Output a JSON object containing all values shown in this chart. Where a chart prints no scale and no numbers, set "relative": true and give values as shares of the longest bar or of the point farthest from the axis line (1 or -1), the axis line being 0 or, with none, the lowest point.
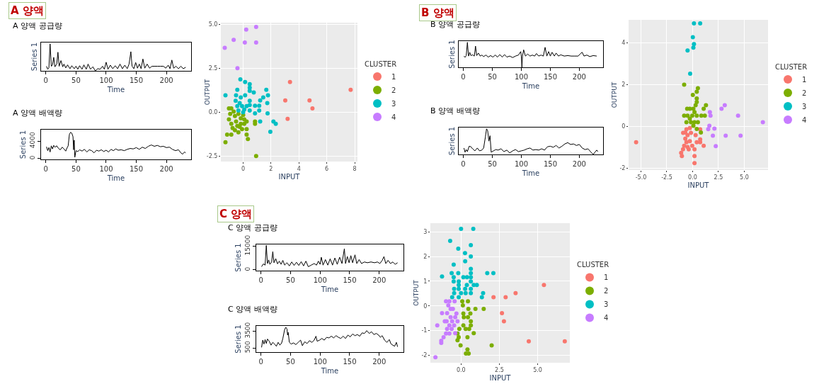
{
  "chart_data": [
    {
      "type": "line",
      "title": "A 양액 공급량",
      "annotations": [
        "A 양액"
      ],
      "xlabel": "Time",
      "ylabel": "Series 1",
      "relative": true,
      "color": "#000000",
      "xlim": [
        -8,
        241
      ],
      "xticks": [
        0,
        50,
        100,
        150,
        200
      ],
      "x": [
        1,
        3,
        5,
        7,
        9,
        11,
        13,
        15,
        18,
        20,
        22,
        25,
        28,
        30,
        33,
        36,
        40,
        43,
        47,
        50,
        53,
        56,
        60,
        63,
        67,
        70,
        74,
        78,
        82,
        86,
        90,
        94,
        97,
        100,
        103,
        107,
        111,
        115,
        119,
        123,
        127,
        131,
        135,
        138,
        141,
        143,
        146,
        149,
        152,
        155,
        158,
        161,
        164,
        168,
        172,
        176,
        180,
        185,
        190,
        195,
        199,
        203,
        206,
        209,
        212,
        216,
        220,
        224,
        228,
        232
      ],
      "values": [
        0.17,
        0.06,
        0.11,
        1.0,
        0.17,
        0.22,
        0.5,
        0.15,
        0.25,
        0.69,
        0.17,
        0.38,
        0.15,
        0.25,
        0.11,
        0.22,
        0.08,
        0.19,
        0.08,
        0.17,
        0.06,
        0.19,
        0.06,
        0.22,
        0.06,
        0.25,
        0.06,
        0.15,
        0,
        0.08,
        0.06,
        0.17,
        0.06,
        0.32,
        0.06,
        0.21,
        0.08,
        0.19,
        0.08,
        0.25,
        0.08,
        0.21,
        0.08,
        0.25,
        0.71,
        0.17,
        0.08,
        0.31,
        0.1,
        0.25,
        0.08,
        0.44,
        0.1,
        0.25,
        0.1,
        0.17,
        0.17,
        0.17,
        0.17,
        0.17,
        0.1,
        0.21,
        0.08,
        0.4,
        0.1,
        0.17,
        0.08,
        0.17,
        0.08,
        0.13
      ]
    },
    {
      "type": "line",
      "title": "A 양액 배액량",
      "xlabel": "Time",
      "ylabel": "Series 1",
      "color": "#000000",
      "xlim": [
        -8,
        241
      ],
      "xticks": [
        0,
        50,
        100,
        150,
        200
      ],
      "ylim": [
        -200,
        6600
      ],
      "yticks": [
        0,
        4000
      ],
      "x": [
        1,
        3,
        5,
        7,
        9,
        11,
        13,
        15,
        18,
        21,
        24,
        27,
        30,
        33,
        35,
        37,
        39,
        41,
        43,
        45,
        46,
        47,
        48,
        50,
        53,
        56,
        60,
        64,
        68,
        72,
        76,
        80,
        84,
        88,
        92,
        96,
        100,
        104,
        108,
        112,
        116,
        120,
        125,
        130,
        135,
        140,
        145,
        150,
        155,
        160,
        165,
        170,
        175,
        180,
        185,
        190,
        195,
        200,
        205,
        210,
        215,
        220,
        224,
        227,
        230,
        232
      ],
      "values": [
        2700,
        1800,
        2500,
        1500,
        2900,
        2200,
        3000,
        2600,
        2900,
        2300,
        2000,
        2600,
        2200,
        1700,
        2400,
        2900,
        5500,
        6000,
        5800,
        5000,
        2000,
        4200,
        300,
        1800,
        1600,
        2000,
        1700,
        2100,
        1500,
        2000,
        1800,
        1300,
        1900,
        1700,
        2000,
        1600,
        1900,
        1500,
        2100,
        1800,
        2200,
        1900,
        2000,
        1800,
        2100,
        2300,
        2200,
        2500,
        2100,
        2600,
        2300,
        2800,
        3100,
        2800,
        3000,
        2700,
        2800,
        2500,
        2600,
        2100,
        1800,
        2000,
        1300,
        1000,
        1500,
        1300
      ]
    },
    {
      "type": "scatter",
      "xlabel": "INPUT",
      "ylabel": "OUTPUT",
      "legend_title": "CLUSTER",
      "legend": "right",
      "grid": true,
      "marker": "circle",
      "xlim": [
        -1.6,
        8.2
      ],
      "xticks": [
        0,
        2,
        4,
        6,
        8
      ],
      "ylim": [
        -2.8,
        5.1
      ],
      "yticks": [
        -2.5,
        {
          "value": 0,
          "label": "0.0"
        },
        2.5,
        {
          "value": 5,
          "label": "5.0"
        }
      ],
      "series": [
        {
          "name": "1",
          "color": "#F8766D",
          "x": [
            3.36,
            7.71,
            3.02,
            4.76,
            4.97,
            3.19
          ],
          "values": [
            1.72,
            1.28,
            0.68,
            0.68,
            0.22,
            -0.37
          ]
        },
        {
          "name": "2",
          "color": "#7CAE00",
          "x": [
            -1.27,
            -1.15,
            -0.85,
            -1.02,
            -0.85,
            -0.93,
            -1.02,
            -0.85,
            -0.76,
            -0.59,
            -0.51,
            -0.42,
            -0.34,
            -0.17,
            -0.17,
            -0.08,
            0.08,
            0.08,
            0.25,
            0.25,
            0.25,
            0.34,
            0.85,
            0.85,
            0.93,
            -0.68,
            -0.34,
            0,
            -0.59,
            -0.25
          ],
          "values": [
            -1.7,
            -1.27,
            -1.27,
            0.22,
            0.22,
            -0.09,
            -0.4,
            -0.65,
            -0.9,
            -0.21,
            -0.52,
            -0.77,
            -1.14,
            -0.34,
            -0.65,
            -0.96,
            -0.4,
            -0.65,
            -0.52,
            -0.96,
            -1.27,
            -1.52,
            -0.52,
            -0.65,
            -2.49,
            0.04,
            -0.09,
            -0.15,
            -1.02,
            -0.83
          ]
        },
        {
          "name": "3",
          "color": "#00BFC4",
          "x": [
            -1.27,
            -0.2,
            0.14,
            0.47,
            0.47,
            0.47,
            0.76,
            1.66,
            1.78,
            1.73,
            1.44,
            1.22,
            1.15,
            0.85,
            0.85,
            1.15,
            1.75,
            1.22,
            2.17,
            2.34,
            1.95,
            -0.42,
            -0.51,
            -0.17,
            -0.54,
            -0.25,
            -0.42,
            -0.08,
            0.08,
            0.25,
            0.47,
            0.47,
            0.47,
            0.14,
            -0.34,
            0
          ],
          "values": [
            0.97,
            1.88,
            1.72,
            1.6,
            1.4,
            1.22,
            1.13,
            1.28,
            0.97,
            0.53,
            0.85,
            0.68,
            0.37,
            0.37,
            -0.06,
            0.1,
            -0.06,
            -0.52,
            -0.52,
            -0.65,
            -1.11,
            1.28,
            0.97,
            0.85,
            0.66,
            0.53,
            0.35,
            0.35,
            0.16,
            0.35,
            0.66,
            0.41,
            0.1,
            0.97,
            0.1,
            0
          ]
        },
        {
          "name": "4",
          "color": "#C77CFF",
          "x": [
            -1.32,
            -0.68,
            0.22,
            0.93,
            0.12,
            0.93,
            -0.41
          ],
          "values": [
            3.67,
            4.12,
            4.71,
            4.86,
            3.97,
            3.97,
            2.51
          ]
        }
      ]
    },
    {
      "type": "line",
      "title": "B 양액 공급량",
      "annotations": [
        "B 양액"
      ],
      "xlabel": "Time",
      "ylabel": "Series 1",
      "relative": true,
      "color": "#000000",
      "xlim": [
        -8,
        241
      ],
      "xticks": [
        0,
        50,
        100,
        150,
        200
      ],
      "x": [
        1,
        3,
        5,
        7,
        9,
        11,
        13,
        16,
        19,
        21,
        23,
        26,
        29,
        32,
        35,
        39,
        43,
        47,
        51,
        55,
        59,
        63,
        67,
        71,
        75,
        80,
        85,
        90,
        95,
        99,
        100,
        101,
        102,
        104,
        107,
        111,
        115,
        119,
        123,
        126,
        130,
        134,
        138,
        141,
        144,
        147,
        150,
        153,
        157,
        160,
        164,
        168,
        174,
        180,
        186,
        192,
        198,
        202,
        205,
        208,
        213,
        218,
        224,
        230
      ],
      "values": [
        0.45,
        0.4,
        0.47,
        1.0,
        0.45,
        0.6,
        0.47,
        0.5,
        0.45,
        0.85,
        0.47,
        0.57,
        0.45,
        0.49,
        0.43,
        0.49,
        0.41,
        0.47,
        0.41,
        0.49,
        0.41,
        0.51,
        0.41,
        0.51,
        0.41,
        0.45,
        0.39,
        0.45,
        0.49,
        0.63,
        0.45,
        0,
        0.45,
        0.7,
        0.45,
        0.53,
        0.45,
        0.49,
        0.45,
        0.55,
        0.45,
        0.49,
        0.45,
        0.8,
        0.45,
        0.63,
        0.45,
        0.6,
        0.45,
        0.57,
        0.45,
        0.5,
        0.45,
        0.47,
        0.45,
        0.45,
        0.45,
        0.55,
        0.6,
        0.45,
        0.49,
        0.43,
        0.47,
        0.45
      ]
    },
    {
      "type": "line",
      "title": "B 양액 배액량",
      "xlabel": "Time",
      "ylabel": "Series 1",
      "relative": true,
      "color": "#000000",
      "xlim": [
        -8,
        241
      ],
      "xticks": [
        0,
        50,
        100,
        150,
        200
      ],
      "x": [
        1,
        3,
        5,
        7,
        10,
        13,
        16,
        20,
        24,
        28,
        32,
        35,
        38,
        40,
        42,
        44,
        46,
        48,
        52,
        56,
        60,
        65,
        70,
        75,
        80,
        85,
        90,
        95,
        100,
        105,
        110,
        115,
        120,
        125,
        130,
        135,
        140,
        145,
        150,
        155,
        160,
        165,
        170,
        175,
        180,
        185,
        190,
        195,
        200,
        205,
        210,
        215,
        220,
        224,
        227,
        230,
        232
      ],
      "values": [
        0.25,
        0.09,
        0.19,
        0.11,
        0.32,
        0.3,
        0.22,
        0.14,
        0.25,
        0.14,
        0.17,
        0.25,
        0.68,
        1.0,
        0.92,
        0.52,
        0.73,
        0.09,
        0.14,
        0.19,
        0.17,
        0.22,
        0.11,
        0.17,
        0.06,
        0.14,
        0.19,
        0.11,
        0.14,
        0.17,
        0.22,
        0.25,
        0.17,
        0.19,
        0.17,
        0.22,
        0.17,
        0.3,
        0.32,
        0.28,
        0.35,
        0.25,
        0.32,
        0.41,
        0.46,
        0.39,
        0.41,
        0.35,
        0.39,
        0.25,
        0.19,
        0.22,
        0.09,
        0,
        0.09,
        0.17,
        0.11
      ]
    },
    {
      "type": "scatter",
      "xlabel": "INPUT",
      "ylabel": "OUTPUT",
      "legend_title": "CLUSTER",
      "legend": "right",
      "grid": true,
      "marker": "circle",
      "xlim": [
        -6.2,
        7.3
      ],
      "xticks": [
        {
          "value": -5,
          "label": "-5.0"
        },
        -2.5,
        {
          "value": 0,
          "label": "0.0"
        },
        2.5,
        {
          "value": 5,
          "label": "5.0"
        }
      ],
      "ylim": [
        -2.1,
        5.1
      ],
      "yticks": [
        -2,
        0,
        2,
        4
      ],
      "series": [
        {
          "name": "1",
          "color": "#F8766D",
          "x": [
            -5.47,
            -1.11,
            -1.04,
            -0.93,
            -0.82,
            -0.92,
            -0.71,
            -0.6,
            -0.6,
            -0.49,
            -0.38,
            -0.27,
            -0.27,
            -0.16,
            -0.04,
            0.18,
            0.18,
            0.18,
            0.29,
            0.4,
            0.73,
            0.73,
            0.73,
            1.07,
            -0.71,
            -0.49
          ],
          "values": [
            -0.77,
            -1.28,
            -1.43,
            -1.11,
            -0.94,
            -0.32,
            -0.6,
            -0.15,
            -0.77,
            -0.43,
            -1.11,
            -0.09,
            -0.72,
            -0.32,
            -0.94,
            -1.11,
            -1.43,
            -1.77,
            -0.43,
            -0.77,
            -0.15,
            -0.63,
            -0.77,
            -0.94,
            -0.3,
            -1.0
          ]
        },
        {
          "name": "2",
          "color": "#7CAE00",
          "x": [
            -0.82,
            0.02,
            0.51,
            0.4,
            0.4,
            0.4,
            0.29,
            1.29,
            1.07,
            -0.53,
            -0.27,
            0.07,
            -0.82,
            -0.49,
            -0.04,
            0.4,
            0.84,
            1.18,
            -0.6,
            -0.16,
            0.18,
            0.51,
            0.07,
            0.4,
            0.8,
            -0.27,
            0.18
          ],
          "values": [
            1.99,
            1.5,
            1.82,
            1.65,
            1.33,
            1.16,
            1.01,
            1.01,
            0.84,
            0.84,
            0.84,
            0.84,
            0.51,
            0.51,
            0.51,
            0.51,
            0.51,
            0.51,
            0.19,
            0.19,
            0.19,
            0.19,
            0.02,
            -0.13,
            -0.3,
            0.36,
            0.68
          ]
        },
        {
          "name": "3",
          "color": "#00BFC4",
          "x": [
            0.13,
            0.73,
            0.02,
            0.13,
            0.07,
            -0.49,
            -0.24
          ],
          "values": [
            4.93,
            4.93,
            4.27,
            3.94,
            3.77,
            3.63,
            2.52
          ]
        },
        {
          "name": "4",
          "color": "#C77CFF",
          "x": [
            6.8,
            4.4,
            3.11,
            2.8,
            1.67,
            1.73,
            1.62,
            1.51,
            2.11,
            1.96,
            3.2,
            4.64,
            2.24
          ],
          "values": [
            0.19,
            0.51,
            1.01,
            0.84,
            0.68,
            0.51,
            0.02,
            -0.14,
            -0.11,
            -0.45,
            -0.45,
            -0.45,
            -0.95
          ]
        }
      ]
    },
    {
      "type": "line",
      "title": "C 양액 공급량",
      "annotations": [
        "C 양액"
      ],
      "xlabel": "Time",
      "ylabel": "Series 1",
      "color": "#000000",
      "xlim": [
        -8,
        241
      ],
      "xticks": [
        0,
        50,
        100,
        150,
        200
      ],
      "ylim": [
        -500,
        16100
      ],
      "yticks": [
        0,
        15000
      ],
      "x": [
        1,
        4,
        7,
        9,
        11,
        13,
        15,
        18,
        20,
        22,
        25,
        28,
        31,
        34,
        37,
        40,
        44,
        48,
        52,
        56,
        60,
        64,
        68,
        72,
        76,
        80,
        85,
        90,
        94,
        97,
        100,
        102,
        105,
        109,
        113,
        117,
        121,
        125,
        129,
        133,
        137,
        141,
        143,
        146,
        149,
        152,
        155,
        159,
        162,
        166,
        170,
        175,
        180,
        186,
        192,
        197,
        201,
        205,
        208,
        211,
        215,
        219,
        223,
        227,
        231
      ],
      "values": [
        2000,
        3800,
        3000,
        15500,
        4000,
        6300,
        3500,
        5000,
        11500,
        4500,
        7100,
        3800,
        5500,
        3500,
        6000,
        3000,
        4500,
        2500,
        5000,
        2800,
        4800,
        2800,
        5200,
        2500,
        5500,
        2000,
        3000,
        4000,
        3000,
        5500,
        3500,
        8000,
        3000,
        6500,
        3000,
        7000,
        3000,
        7500,
        3500,
        8000,
        4000,
        13400,
        4000,
        8500,
        4500,
        9000,
        4500,
        9500,
        4000,
        6500,
        4000,
        5000,
        4500,
        5000,
        4500,
        5000,
        4000,
        6000,
        8400,
        4000,
        6000,
        4000,
        5000,
        3500,
        4500
      ]
    },
    {
      "type": "line",
      "title": "C 양액 배액량",
      "xlabel": "Time",
      "ylabel": "Series 1",
      "color": "#000000",
      "xlim": [
        -8,
        241
      ],
      "xticks": [
        0,
        50,
        100,
        150,
        200
      ],
      "ylim": [
        -250,
        4450
      ],
      "yticks": [
        500,
        3500
      ],
      "x": [
        1,
        3,
        5,
        7,
        9,
        11,
        14,
        17,
        20,
        23,
        26,
        29,
        32,
        35,
        37,
        40,
        42,
        44,
        45,
        46,
        48,
        51,
        55,
        59,
        63,
        67,
        70,
        74,
        78,
        82,
        86,
        90,
        93,
        95,
        99,
        103,
        107,
        111,
        115,
        119,
        123,
        127,
        131,
        135,
        139,
        143,
        147,
        151,
        155,
        159,
        163,
        167,
        171,
        175,
        179,
        183,
        187,
        191,
        195,
        199,
        202,
        205,
        209,
        213,
        217,
        220,
        223,
        226,
        229,
        231
      ],
      "values": [
        600,
        1900,
        1200,
        2000,
        1300,
        2100,
        1700,
        1000,
        1500,
        1200,
        800,
        1500,
        1000,
        1400,
        2200,
        3800,
        4200,
        3900,
        2800,
        3300,
        1500,
        1200,
        1400,
        1100,
        1500,
        1900,
        900,
        1600,
        1300,
        1800,
        1500,
        1900,
        2600,
        1700,
        1900,
        2200,
        1900,
        2400,
        2300,
        2600,
        2300,
        2700,
        2400,
        2200,
        2600,
        2200,
        2800,
        2500,
        3000,
        2700,
        2900,
        2600,
        3200,
        3100,
        3600,
        3100,
        3400,
        2900,
        3100,
        2800,
        2400,
        2700,
        1900,
        1500,
        2000,
        1200,
        1000,
        800,
        1500,
        700
      ]
    },
    {
      "type": "scatter",
      "xlabel": "INPUT",
      "ylabel": "OUTPUT",
      "legend_title": "CLUSTER",
      "legend": "right",
      "grid": true,
      "marker": "circle",
      "xlim": [
        -2.0,
        7.1
      ],
      "xticks": [
        {
          "value": 0,
          "label": "0.0"
        },
        2.5,
        {
          "value": 5,
          "label": "5.0"
        }
      ],
      "ylim": [
        -2.3,
        3.35
      ],
      "yticks": [
        -2,
        -1,
        0,
        1,
        2,
        3
      ],
      "series": [
        {
          "name": "1",
          "color": "#F8766D",
          "x": [
            5.41,
            3.56,
            2.12,
            2.91,
            2.67,
            2.8,
            4.42,
            6.77
          ],
          "values": [
            0.85,
            0.52,
            0.35,
            0.35,
            -0.29,
            -0.62,
            -1.43,
            -1.43
          ]
        },
        {
          "name": "2",
          "color": "#7CAE00",
          "x": [
            0.08,
            0.45,
            0.12,
            0.48,
            0.94,
            1.48,
            0.15,
            0.61,
            0.18,
            0.45,
            0.64,
            0.15,
            0.64,
            -0.11,
            0.3,
            0.53,
            0.83,
            -0.23,
            0.42,
            -0.15,
            -0.23,
            -0.03,
            2.0,
            0.42,
            0.32,
            0.5
          ],
          "values": [
            0.19,
            0.19,
            0.02,
            -0.12,
            -0.12,
            -0.12,
            -0.31,
            -0.31,
            -0.46,
            -0.46,
            -0.62,
            -0.79,
            -0.79,
            -0.93,
            -0.93,
            -0.93,
            -1.1,
            -1.12,
            -1.27,
            -1.27,
            -1.39,
            -1.6,
            -1.6,
            -1.76,
            -1.93,
            -1.93
          ]
        },
        {
          "name": "3",
          "color": "#00BFC4",
          "x": [
            0,
            0.8,
            -0.71,
            0.64,
            -0.18,
            0.26,
            0.64,
            0.27,
            -0.48,
            0.64,
            -0.61,
            -0.18,
            0.64,
            1.71,
            2.11,
            -1.24,
            -0.48,
            0.15,
            0.39,
            0.64,
            -0.48,
            -0.15,
            0.64,
            -0.15,
            0.38,
            0.83,
            1.03,
            -0.45,
            -0.15,
            0.27,
            0.64,
            -0.45,
            0,
            0.3,
            0.64,
            1.44,
            1.36,
            -0.58,
            -0.15
          ],
          "values": [
            3.12,
            3.12,
            2.63,
            2.46,
            2.32,
            2.14,
            2.0,
            1.81,
            1.67,
            1.5,
            1.33,
            1.33,
            1.33,
            1.33,
            1.33,
            1.19,
            1.16,
            1.16,
            1.16,
            1.16,
            0.99,
            0.99,
            0.99,
            0.85,
            0.85,
            0.85,
            0.85,
            0.69,
            0.69,
            0.69,
            0.69,
            0.52,
            0.52,
            0.52,
            0.52,
            0.52,
            0.35,
            0.35,
            0.35
          ]
        },
        {
          "name": "4",
          "color": "#C77CFF",
          "x": [
            -1.67,
            -1.55,
            -1.24,
            -1.29,
            -1.29,
            -1.14,
            -1.06,
            -0.98,
            -0.76,
            -0.42,
            -0.83,
            -0.53,
            -0.91,
            -0.68,
            -0.38,
            -0.94,
            -0.58,
            -0.23,
            -0.76,
            -0.45,
            -0.91,
            -0.61,
            -0.98,
            -0.76,
            -0.38,
            -0.3,
            -0.68
          ],
          "values": [
            -2.08,
            -0.79,
            -0.29,
            -1.41,
            -1.5,
            -1.27,
            -0.62,
            0.19,
            0.19,
            0.19,
            0.02,
            -0.12,
            -0.29,
            -0.46,
            -0.46,
            -0.62,
            -0.62,
            -0.62,
            -0.79,
            -0.79,
            -0.93,
            -0.93,
            -1.12,
            -1.12,
            -1.1,
            -0.31,
            -0.12
          ]
        }
      ]
    }
  ]
}
